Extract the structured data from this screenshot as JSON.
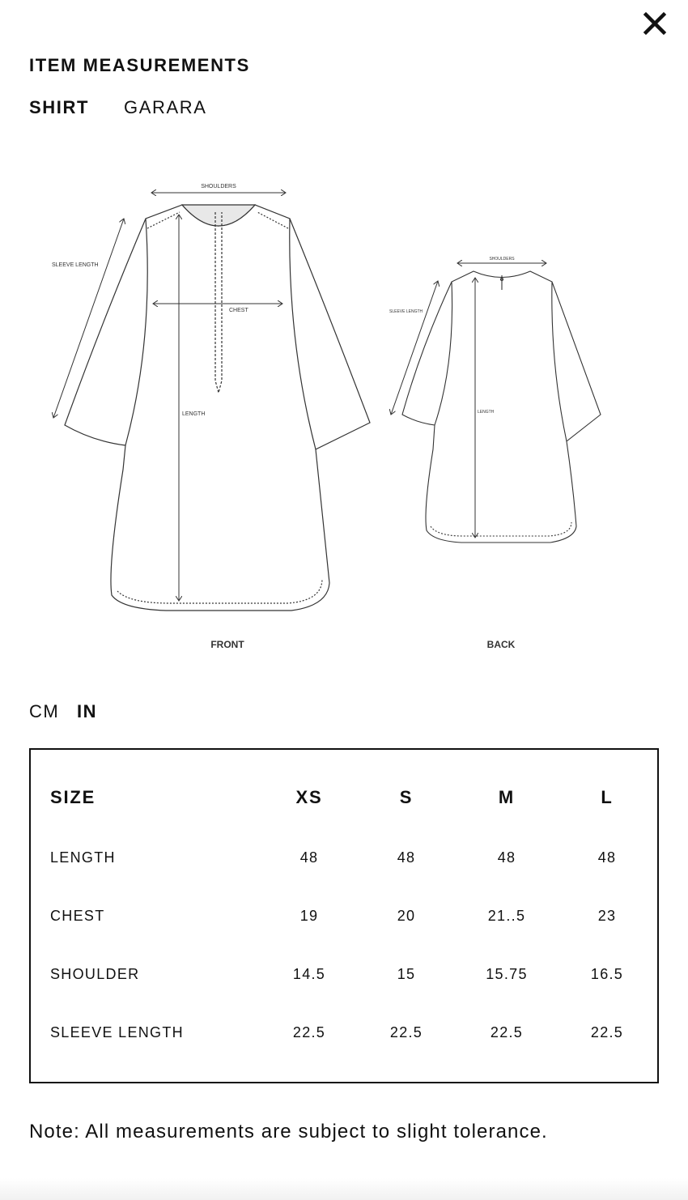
{
  "header": {
    "title": "ITEM MEASUREMENTS",
    "close_icon": "close-icon"
  },
  "tabs": [
    {
      "label": "SHIRT",
      "active": true
    },
    {
      "label": "GARARA",
      "active": false
    }
  ],
  "illustration": {
    "front": {
      "caption": "FRONT",
      "shoulders": "SHOULDERS",
      "chest": "CHEST",
      "length": "LENGTH",
      "sleeve_length": "SLEEVE LENGTH"
    },
    "back": {
      "caption": "BACK",
      "shoulders": "SHOULDERS",
      "length": "LENGTH",
      "sleeve_length": "SLEEVE LENGTH"
    }
  },
  "units": [
    {
      "label": "CM",
      "active": false
    },
    {
      "label": "IN",
      "active": true
    }
  ],
  "table": {
    "headers": [
      "SIZE",
      "XS",
      "S",
      "M",
      "L"
    ],
    "rows": [
      [
        "LENGTH",
        "48",
        "48",
        "48",
        "48"
      ],
      [
        "CHEST",
        "19",
        "20",
        "21..5",
        "23"
      ],
      [
        "SHOULDER",
        "14.5",
        "15",
        "15.75",
        "16.5"
      ],
      [
        "SLEEVE LENGTH",
        "22.5",
        "22.5",
        "22.5",
        "22.5"
      ]
    ]
  },
  "note": "Note: All measurements are subject to slight tolerance."
}
